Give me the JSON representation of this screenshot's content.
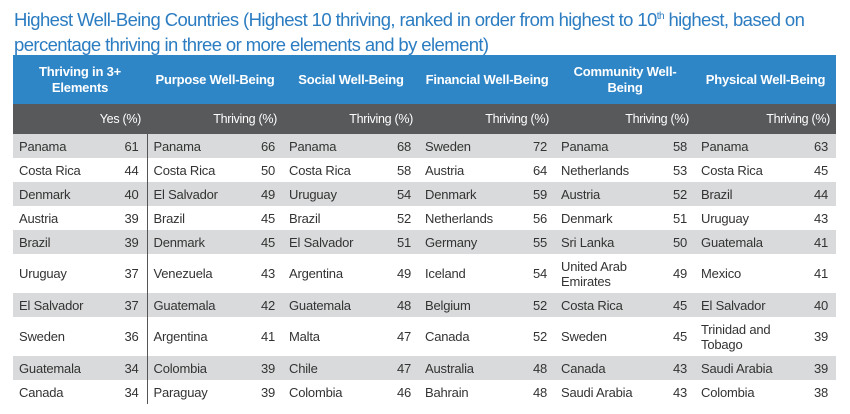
{
  "title": {
    "before": "Highest Well-Being Countries (Highest 10 thriving, ranked in order from highest to 10",
    "sup": "th",
    "after": " highest, based on percentage thriving in three or more elements and by element)"
  },
  "columns": [
    {
      "header": "Thriving in 3+ Elements",
      "subheader": "Yes (%)"
    },
    {
      "header": "Purpose Well-Being",
      "subheader": "Thriving (%)"
    },
    {
      "header": "Social Well-Being",
      "subheader": "Thriving (%)"
    },
    {
      "header": "Financial Well-Being",
      "subheader": "Thriving (%)"
    },
    {
      "header": "Community Well-Being",
      "subheader": "Thriving (%)"
    },
    {
      "header": "Physical Well-Being",
      "subheader": "Thriving (%)"
    }
  ],
  "rows": [
    [
      [
        "Panama",
        "61"
      ],
      [
        "Panama",
        "66"
      ],
      [
        "Panama",
        "68"
      ],
      [
        "Sweden",
        "72"
      ],
      [
        "Panama",
        "58"
      ],
      [
        "Panama",
        "63"
      ]
    ],
    [
      [
        "Costa Rica",
        "44"
      ],
      [
        "Costa Rica",
        "50"
      ],
      [
        "Costa Rica",
        "58"
      ],
      [
        "Austria",
        "64"
      ],
      [
        "Netherlands",
        "53"
      ],
      [
        "Costa Rica",
        "45"
      ]
    ],
    [
      [
        "Denmark",
        "40"
      ],
      [
        "El Salvador",
        "49"
      ],
      [
        "Uruguay",
        "54"
      ],
      [
        "Denmark",
        "59"
      ],
      [
        "Austria",
        "52"
      ],
      [
        "Brazil",
        "44"
      ]
    ],
    [
      [
        "Austria",
        "39"
      ],
      [
        "Brazil",
        "45"
      ],
      [
        "Brazil",
        "52"
      ],
      [
        "Netherlands",
        "56"
      ],
      [
        "Denmark",
        "51"
      ],
      [
        "Uruguay",
        "43"
      ]
    ],
    [
      [
        "Brazil",
        "39"
      ],
      [
        "Denmark",
        "45"
      ],
      [
        "El Salvador",
        "51"
      ],
      [
        "Germany",
        "55"
      ],
      [
        "Sri Lanka",
        "50"
      ],
      [
        "Guatemala",
        "41"
      ]
    ],
    [
      [
        "Uruguay",
        "37"
      ],
      [
        "Venezuela",
        "43"
      ],
      [
        "Argentina",
        "49"
      ],
      [
        "Iceland",
        "54"
      ],
      [
        "United Arab Emirates",
        "49"
      ],
      [
        "Mexico",
        "41"
      ]
    ],
    [
      [
        "El Salvador",
        "37"
      ],
      [
        "Guatemala",
        "42"
      ],
      [
        "Guatemala",
        "48"
      ],
      [
        "Belgium",
        "52"
      ],
      [
        "Costa Rica",
        "45"
      ],
      [
        "El Salvador",
        "40"
      ]
    ],
    [
      [
        "Sweden",
        "36"
      ],
      [
        "Argentina",
        "41"
      ],
      [
        "Malta",
        "47"
      ],
      [
        "Canada",
        "52"
      ],
      [
        "Sweden",
        "45"
      ],
      [
        "Trinidad and Tobago",
        "39"
      ]
    ],
    [
      [
        "Guatemala",
        "34"
      ],
      [
        "Colombia",
        "39"
      ],
      [
        "Chile",
        "47"
      ],
      [
        "Australia",
        "48"
      ],
      [
        "Canada",
        "43"
      ],
      [
        "Saudi Arabia",
        "39"
      ]
    ],
    [
      [
        "Canada",
        "34"
      ],
      [
        "Paraguay",
        "39"
      ],
      [
        "Colombia",
        "46"
      ],
      [
        "Bahrain",
        "48"
      ],
      [
        "Saudi Arabia",
        "43"
      ],
      [
        "Colombia",
        "38"
      ]
    ]
  ]
}
